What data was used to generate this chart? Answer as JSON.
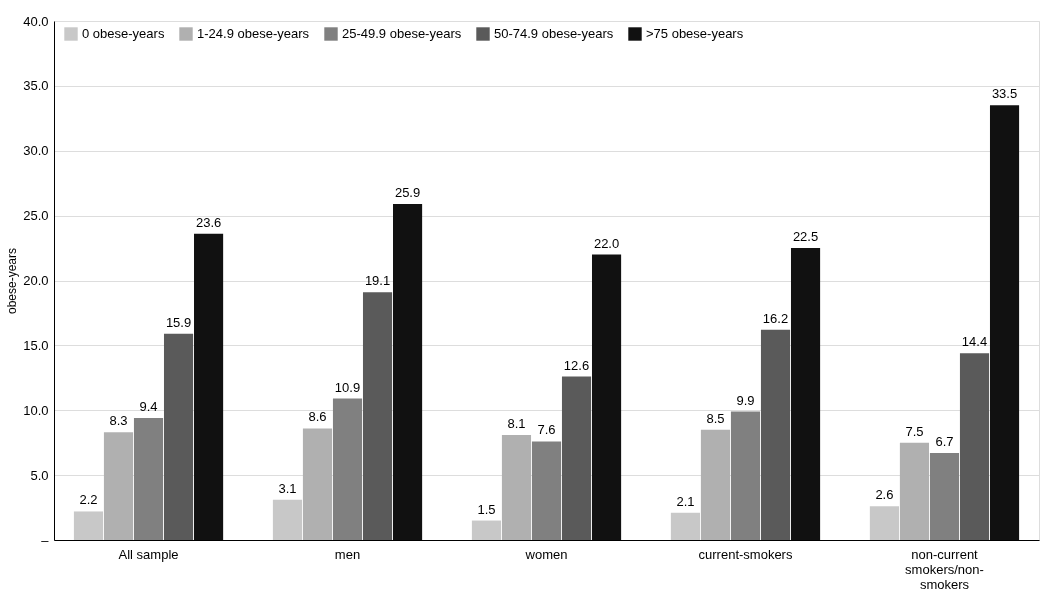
{
  "chart_data": {
    "type": "bar",
    "ylabel": "obese-years",
    "categories": [
      "All sample",
      "men",
      "women",
      "current-smokers",
      "non-current smokers/non-smokers"
    ],
    "series": [
      {
        "name": "0 obese-years",
        "color": "#c8c8c8",
        "values": [
          2.2,
          3.1,
          1.5,
          2.1,
          2.6
        ],
        "value_labels": [
          "2.2",
          "3.1",
          "1.5",
          "2.1",
          "2.6"
        ]
      },
      {
        "name": "1-24.9 obese-years",
        "color": "#b0b0b0",
        "values": [
          8.3,
          8.6,
          8.1,
          8.5,
          7.5
        ],
        "value_labels": [
          "8.3",
          "8.6",
          "8.1",
          "8.5",
          "7.5"
        ]
      },
      {
        "name": "25-49.9 obese-years",
        "color": "#808080",
        "values": [
          9.4,
          10.9,
          7.6,
          9.9,
          6.7
        ],
        "value_labels": [
          "9.4",
          "10.9",
          "7.6",
          "9.9",
          "6.7"
        ]
      },
      {
        "name": "50-74.9 obese-years",
        "color": "#5a5a5a",
        "values": [
          15.9,
          19.1,
          12.6,
          16.2,
          14.4
        ],
        "value_labels": [
          "15.9",
          "19.1",
          "12.6",
          "16.2",
          "14.4"
        ]
      },
      {
        "name": ">75 obese-years",
        "color": "#111111",
        "values": [
          23.6,
          25.9,
          22.0,
          22.5,
          33.5
        ],
        "value_labels": [
          "23.6",
          "25.9",
          "22.0",
          "22.5",
          "33.5"
        ]
      }
    ],
    "ylim": [
      0,
      40
    ],
    "yticks": [
      {
        "value": 0,
        "label": "–"
      },
      {
        "value": 5,
        "label": "5.0"
      },
      {
        "value": 10,
        "label": "10.0"
      },
      {
        "value": 15,
        "label": "15.0"
      },
      {
        "value": 20,
        "label": "20.0"
      },
      {
        "value": 25,
        "label": "25.0"
      },
      {
        "value": 30,
        "label": "30.0"
      },
      {
        "value": 35,
        "label": "35.0"
      },
      {
        "value": 40,
        "label": "40.0"
      }
    ],
    "grid": "y",
    "legend": "top"
  }
}
